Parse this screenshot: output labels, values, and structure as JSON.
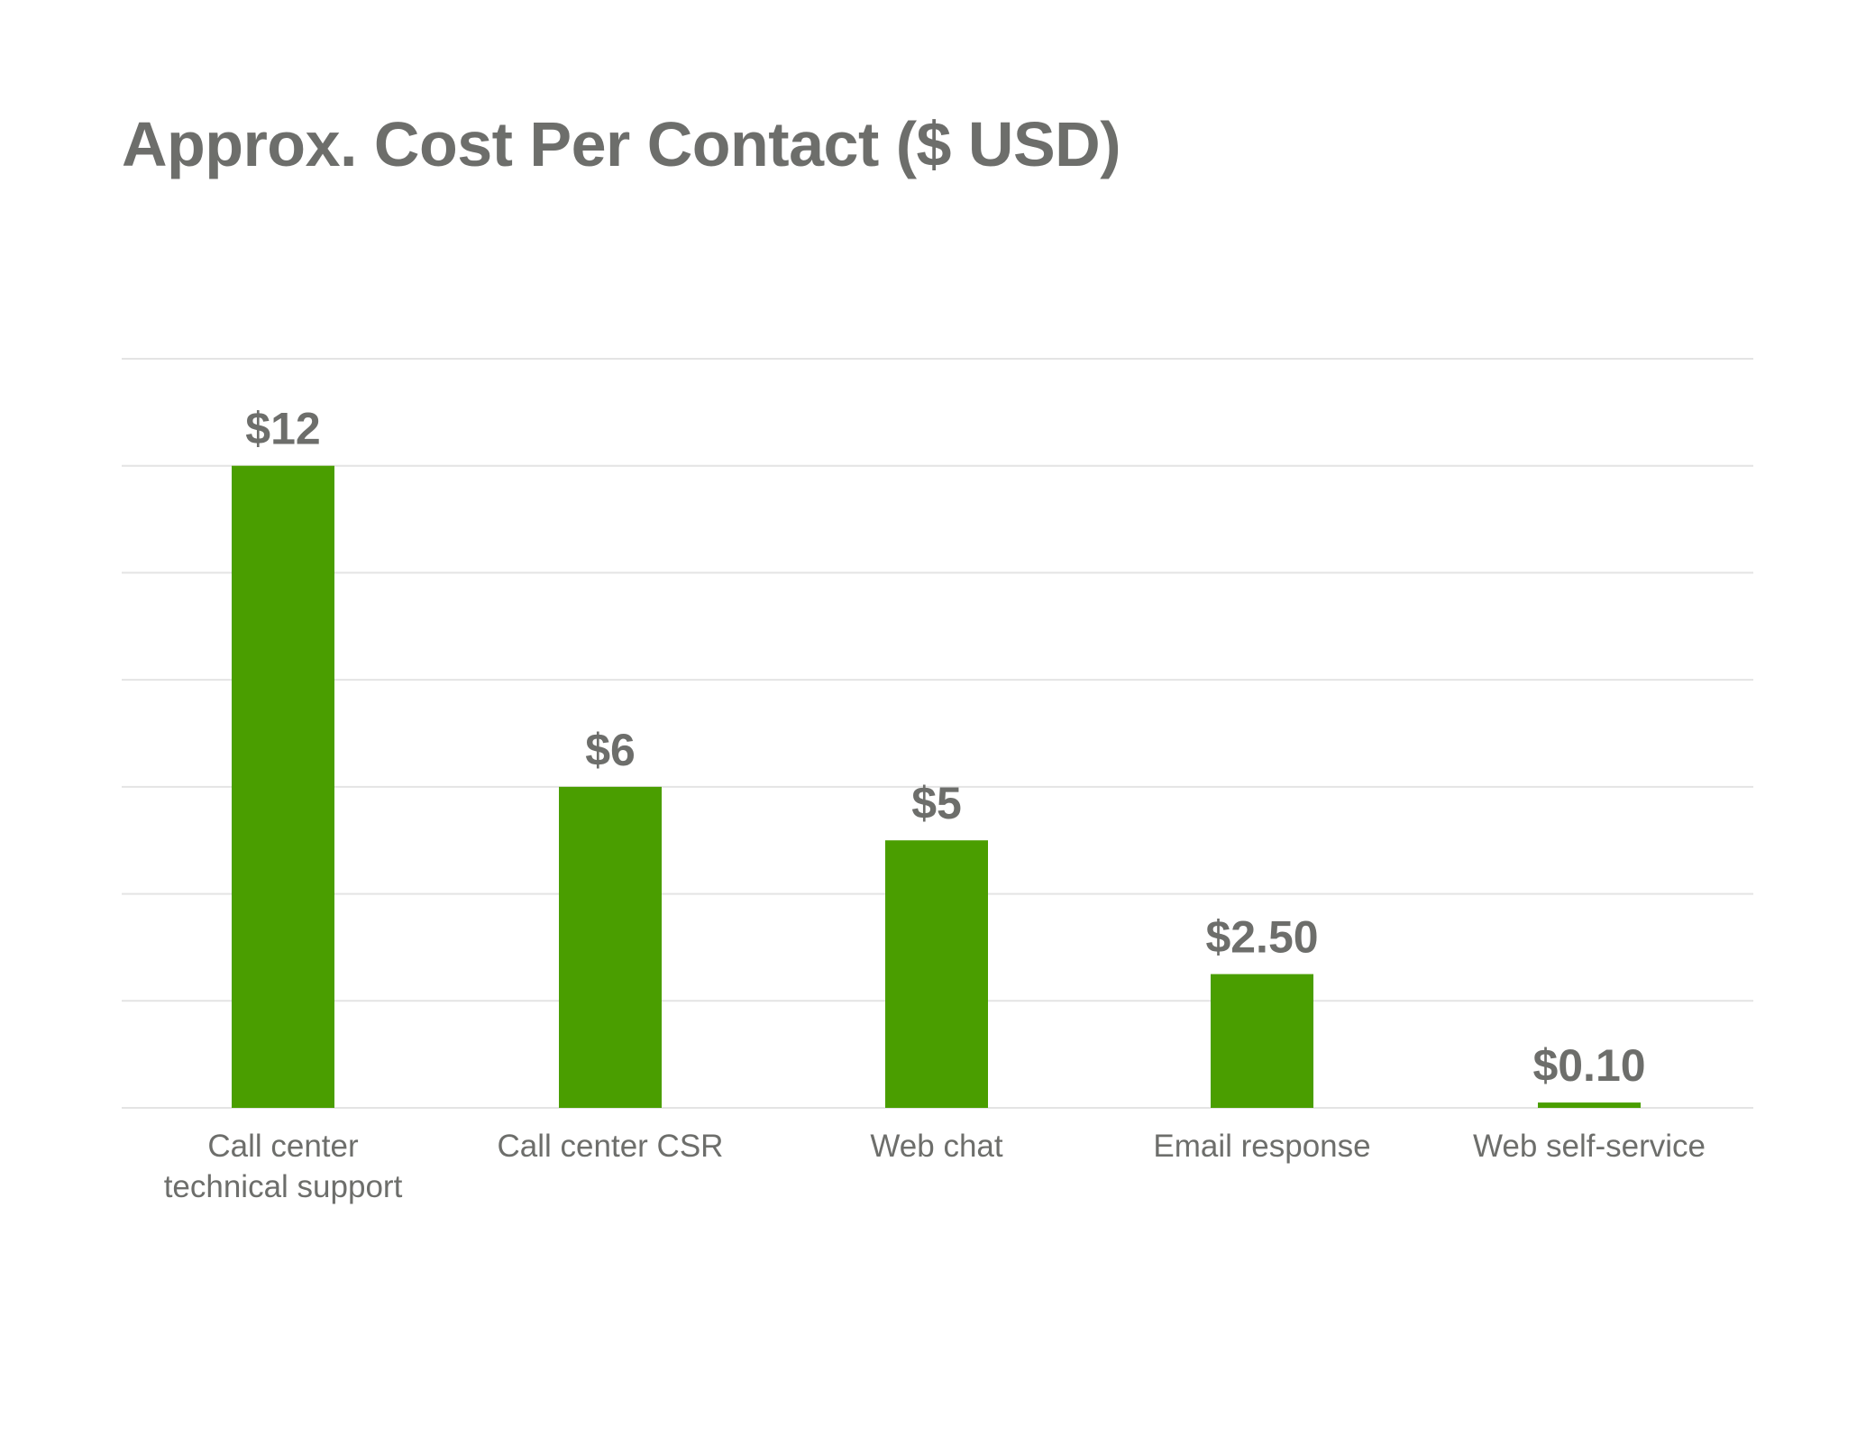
{
  "chart_data": {
    "type": "bar",
    "title": "Approx. Cost Per Contact ($ USD)",
    "xlabel": "",
    "ylabel": "",
    "categories": [
      [
        "Call center",
        "technical support"
      ],
      [
        "Call center CSR"
      ],
      [
        "Web chat"
      ],
      [
        "Email response"
      ],
      [
        "Web self-service"
      ]
    ],
    "values": [
      12,
      6,
      5,
      2.5,
      0.1
    ],
    "value_labels": [
      "$12",
      "$6",
      "$5",
      "$2.50",
      "$0.10"
    ],
    "ylim": [
      0,
      14
    ],
    "y_grid_step": 2,
    "grid": true,
    "legend": "none",
    "colors": {
      "bar": "#4a9e00",
      "text": "#6d6e6b",
      "grid": "#e4e4e4"
    }
  }
}
